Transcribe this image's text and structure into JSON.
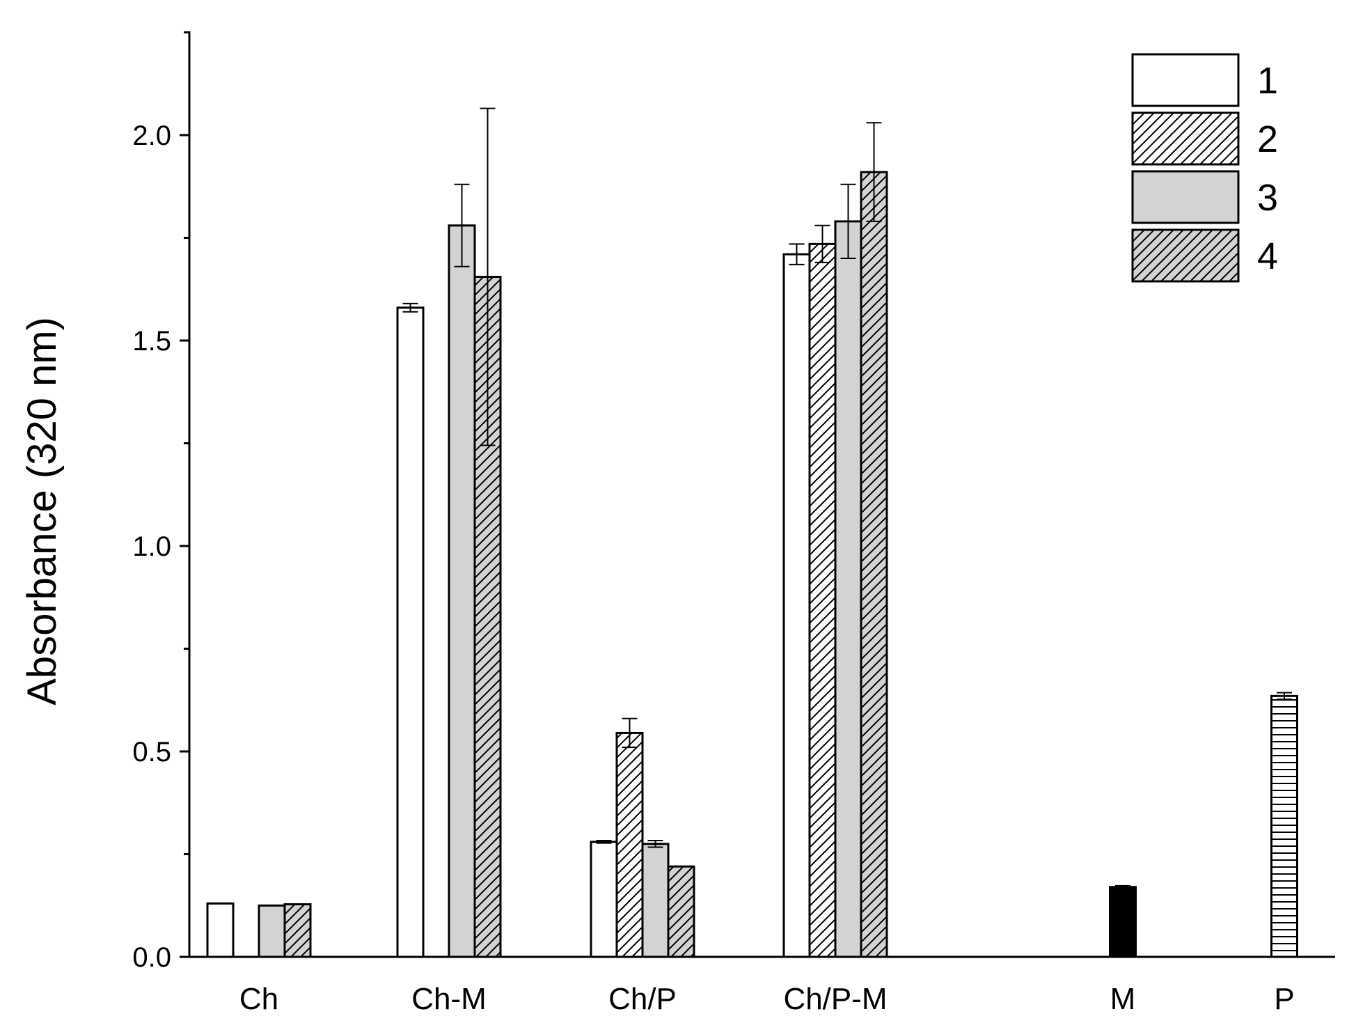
{
  "chart_data": {
    "type": "bar",
    "ylabel": "Absorbance (320 nm)",
    "xlabel": "",
    "ylim": [
      0,
      2.25
    ],
    "yticks": [
      "0.0",
      "0.5",
      "1.0",
      "1.5",
      "2.0"
    ],
    "categories": [
      "Ch",
      "Ch-M",
      "Ch/P",
      "Ch/P-M",
      "M",
      "P"
    ],
    "series": [
      {
        "name": "1",
        "fill": "white",
        "values": [
          0.13,
          1.58,
          0.28,
          1.71,
          null,
          null
        ],
        "errors": [
          0.0,
          0.01,
          0.003,
          0.025,
          null,
          null
        ]
      },
      {
        "name": "2",
        "fill": "hatch-white",
        "values": [
          null,
          null,
          0.545,
          1.735,
          null,
          null
        ],
        "errors": [
          null,
          null,
          0.035,
          0.045,
          null,
          null
        ]
      },
      {
        "name": "3",
        "fill": "gray",
        "values": [
          0.125,
          1.78,
          0.275,
          1.79,
          null,
          null
        ],
        "errors": [
          0.0,
          0.1,
          0.008,
          0.09,
          null,
          null
        ]
      },
      {
        "name": "4",
        "fill": "hatch-gray",
        "values": [
          0.128,
          1.655,
          0.22,
          1.91,
          null,
          null
        ],
        "errors": [
          0.0,
          0.41,
          0.0,
          0.12,
          null,
          null
        ]
      }
    ],
    "extra_bars": [
      {
        "category": "M",
        "value": 0.17,
        "error": 0.003,
        "fill": "black"
      },
      {
        "category": "P",
        "value": 0.635,
        "error": 0.008,
        "fill": "horizontal-stripes"
      }
    ],
    "legend": {
      "position": "top-right",
      "entries": [
        "1",
        "2",
        "3",
        "4"
      ]
    },
    "grid": false,
    "colors": {
      "gray": "#d3d3d3",
      "black": "#000000",
      "white": "#ffffff"
    }
  }
}
